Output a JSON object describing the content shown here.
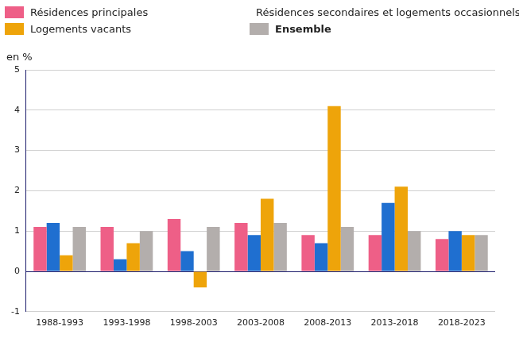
{
  "chart_data": {
    "type": "bar",
    "ylabel": "en %",
    "categories": [
      "1988-1993",
      "1993-1998",
      "1998-2003",
      "2003-2008",
      "2008-2013",
      "2013-2018",
      "2018-2023"
    ],
    "series": [
      {
        "name": "Résidences principales",
        "color": "#ee5f87",
        "values": [
          1.1,
          1.1,
          1.3,
          1.2,
          0.9,
          0.9,
          0.8
        ]
      },
      {
        "name": "Résidences secondaires et logements occasionnels",
        "color": "#1f6fd0",
        "values": [
          1.2,
          0.3,
          0.5,
          0.9,
          0.7,
          1.7,
          1.0
        ]
      },
      {
        "name": "Logements vacants",
        "color": "#eea40a",
        "values": [
          0.4,
          0.7,
          -0.4,
          1.8,
          4.1,
          2.1,
          0.9
        ]
      },
      {
        "name": "Ensemble",
        "color": "#b3aeac",
        "values": [
          1.1,
          1.0,
          1.1,
          1.2,
          1.1,
          1.0,
          0.9
        ]
      }
    ],
    "ylim": [
      -1,
      5
    ],
    "yticks": [
      -1,
      0,
      1,
      2,
      3,
      4,
      5
    ],
    "grid": true,
    "legend": "top"
  }
}
